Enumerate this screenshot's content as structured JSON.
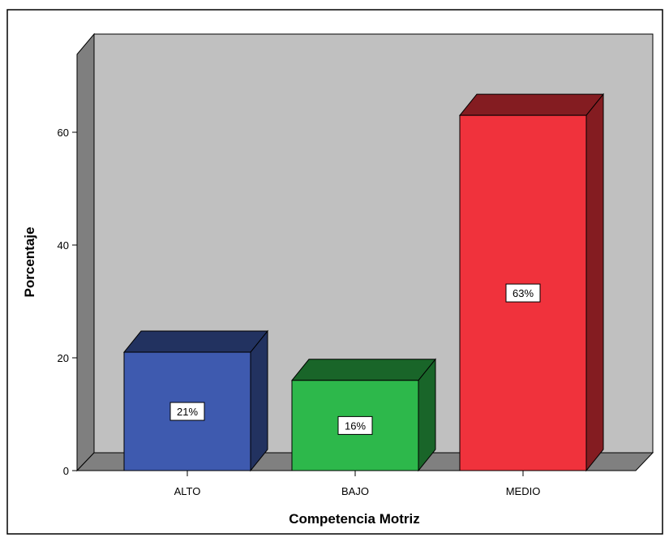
{
  "chart_data": {
    "type": "bar",
    "categories": [
      "ALTO",
      "BAJO",
      "MEDIO"
    ],
    "values": [
      21,
      16,
      63
    ],
    "data_labels": [
      "21%",
      "16%",
      "63%"
    ],
    "xlabel": "Competencia Motriz",
    "ylabel": "Porcentaje",
    "ylim": [
      0,
      70
    ],
    "yticks": [
      0,
      20,
      40,
      60
    ],
    "grid": false,
    "style": "3d",
    "colors": {
      "ALTO": "#3e5aaf",
      "BAJO": "#2db84b",
      "MEDIO": "#f0323c",
      "plot_background": "#c0c0c0",
      "floor": "#808080"
    }
  }
}
